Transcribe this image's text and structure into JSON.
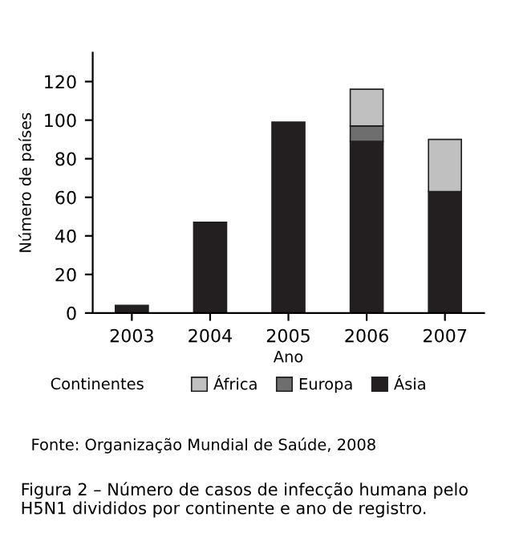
{
  "chart_data": {
    "type": "bar",
    "stacked": true,
    "xlabel": "Ano",
    "ylabel": "Número de países",
    "legend_title": "Continentes",
    "legend": "bottom",
    "grid": false,
    "categories": [
      "2003",
      "2004",
      "2005",
      "2006",
      "2007"
    ],
    "series": [
      {
        "name": "Ásia",
        "color": "#231f20",
        "values": [
          4,
          47,
          99,
          89,
          63
        ]
      },
      {
        "name": "Europa",
        "color": "#6e6e6e",
        "values": [
          0,
          0,
          0,
          8,
          0
        ]
      },
      {
        "name": "África",
        "color": "#c0c0c0",
        "values": [
          0,
          0,
          0,
          19,
          27
        ]
      }
    ],
    "ylim": [
      0,
      135
    ],
    "yticks": [
      0,
      20,
      40,
      60,
      80,
      100,
      120
    ],
    "annotations": [
      "Fonte: Organização Mundial de Saúde, 2008",
      "Figura 2 – Número de casos de infecção humana pelo H5N1 divididos por continente e ano de registro."
    ]
  }
}
